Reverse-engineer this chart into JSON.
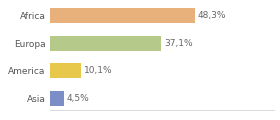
{
  "categories": [
    "Asia",
    "America",
    "Europa",
    "Africa"
  ],
  "values": [
    4.5,
    10.1,
    37.1,
    48.3
  ],
  "labels": [
    "4,5%",
    "10,1%",
    "37,1%",
    "48,3%"
  ],
  "bar_colors": [
    "#7b8ec8",
    "#e8c84a",
    "#b5c98a",
    "#e8b07a"
  ],
  "xlim": [
    0,
    75
  ],
  "background_color": "#ffffff",
  "label_fontsize": 6.5,
  "tick_fontsize": 6.5,
  "bar_height": 0.55
}
